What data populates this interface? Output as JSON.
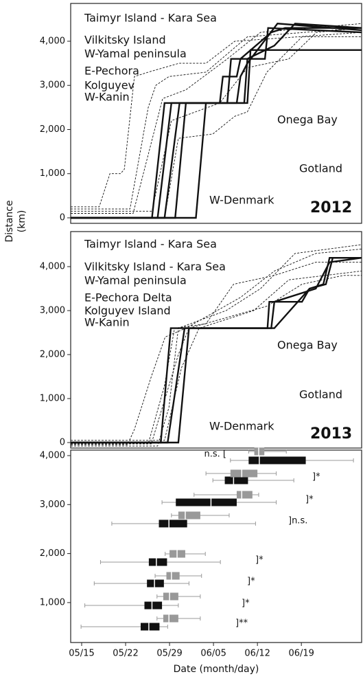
{
  "ylabel": [
    "Distance",
    "(km)"
  ],
  "chart_data": [
    {
      "type": "line",
      "panel_label": "2012",
      "xlim": [
        133.25,
        179.6
      ],
      "ylim": [
        -125,
        4856
      ],
      "yticks": [
        0,
        {
          "value": 1000,
          "label": "1,000"
        },
        {
          "value": 2000,
          "label": "2,000"
        },
        {
          "value": 3000,
          "label": "3,000"
        },
        {
          "value": 4000,
          "label": "4,000"
        }
      ],
      "annotations": [
        "Taimyr Island - Kara Sea",
        "Vilkitsky Island",
        "W-Yamal peninsula",
        "E-Pechora",
        "Kolguyev",
        "W-Kanin",
        "Onega Bay",
        "Gotland",
        "W-Denmark"
      ],
      "series": [
        {
          "color": "#111111",
          "style": "dashed",
          "x": [
            133.25,
            137.8,
            139.5,
            141.2,
            141.8,
            143.4,
            145.6,
            150.5,
            154.8,
            159.4,
            179.6
          ],
          "values": [
            250,
            250,
            1000,
            1000,
            1100,
            3200,
            3300,
            3500,
            3500,
            4000,
            4200
          ]
        },
        {
          "color": "#111111",
          "style": "dashed",
          "x": [
            133.25,
            142.7,
            145.6,
            146.8,
            148.9,
            154.8,
            161.4,
            179.6
          ],
          "values": [
            200,
            200,
            2500,
            3000,
            3200,
            3300,
            4100,
            4300
          ]
        },
        {
          "color": "#111111",
          "style": "dashed",
          "x": [
            133.25,
            143.2,
            147.9,
            151.6,
            158.2,
            163.5,
            179.6
          ],
          "values": [
            100,
            100,
            2700,
            2900,
            3600,
            4200,
            4400
          ]
        },
        {
          "color": "#111111",
          "style": "dashed",
          "x": [
            133.25,
            148.2,
            150.4,
            155.9,
            159.4,
            161.4,
            164.5,
            170.1,
            179.6
          ],
          "values": [
            0,
            0,
            1800,
            1900,
            2300,
            2400,
            3300,
            4100,
            4100
          ]
        },
        {
          "color": "#111111",
          "style": "dashed",
          "x": [
            133.25,
            146.2,
            149.3,
            157.0,
            161.4,
            168.0,
            172.4,
            179.6
          ],
          "values": [
            150,
            150,
            2200,
            2600,
            3400,
            3600,
            4200,
            4300
          ]
        },
        {
          "color": "#111111",
          "style": "solid",
          "x": [
            133.25,
            146.2,
            148.2,
            157.0,
            157.5,
            159.7,
            160.3,
            165.2,
            167.4,
            179.6
          ],
          "values": [
            0,
            0,
            2600,
            2600,
            3200,
            3200,
            3600,
            4200,
            4300,
            4300
          ]
        },
        {
          "color": "#111111",
          "style": "solid",
          "x": [
            133.25,
            147.1,
            149.3,
            158.2,
            158.8,
            164.2,
            164.7,
            179.6
          ],
          "values": [
            0,
            0,
            2600,
            2600,
            3600,
            3600,
            4300,
            4200
          ]
        },
        {
          "color": "#111111",
          "style": "solid",
          "x": [
            133.25,
            148.2,
            150.6,
            159.7,
            160.3,
            161.4,
            166.2,
            179.6
          ],
          "values": [
            0,
            0,
            2600,
            2600,
            3200,
            3500,
            4400,
            4250
          ]
        },
        {
          "color": "#111111",
          "style": "solid",
          "x": [
            133.25,
            149.9,
            151.6,
            160.9,
            161.4,
            165.7,
            169.0,
            179.6
          ],
          "values": [
            0,
            0,
            2600,
            2600,
            3600,
            3900,
            4400,
            4300
          ]
        },
        {
          "color": "#111111",
          "style": "solid",
          "x": [
            133.25,
            153.2,
            154.8,
            161.4,
            161.9,
            179.6
          ],
          "values": [
            0,
            0,
            2600,
            2600,
            3800,
            3800
          ]
        }
      ]
    },
    {
      "type": "line",
      "panel_label": "2013",
      "xlim": [
        133.25,
        179.6
      ],
      "ylim": [
        -125,
        4797
      ],
      "yticks": [
        0,
        {
          "value": 1000,
          "label": "1,000"
        },
        {
          "value": 2000,
          "label": "2,000"
        },
        {
          "value": 3000,
          "label": "3,000"
        },
        {
          "value": 4000,
          "label": "4,000"
        }
      ],
      "annotations": [
        "Taimyr Island - Kara Sea",
        "Vilkitsky Island - Kara Sea",
        "W-Yamal peninsula",
        "E-Pechora Delta",
        "Kolguyev Island",
        "W-Kanin",
        "Onega Bay",
        "Gotland",
        "W-Denmark"
      ],
      "series": [
        {
          "color": "#111111",
          "style": "dashed",
          "x": [
            133.25,
            142.3,
            143.4,
            146.1,
            148.3,
            151.6,
            160.3,
            165.7,
            172.3,
            179.6
          ],
          "values": [
            -50,
            -50,
            300,
            1500,
            2400,
            2600,
            3300,
            3900,
            4300,
            4400
          ]
        },
        {
          "color": "#111111",
          "style": "dashed",
          "x": [
            133.25,
            147.1,
            148.9,
            150.4,
            158.0,
            163.5,
            169.0,
            179.6
          ],
          "values": [
            -80,
            -80,
            800,
            2600,
            3000,
            3500,
            4300,
            4500
          ]
        },
        {
          "color": "#111111",
          "style": "dashed",
          "x": [
            133.25,
            145.6,
            148.2,
            149.8,
            154.8,
            159.2,
            165.7,
            172.3,
            179.6
          ],
          "values": [
            -30,
            -30,
            1300,
            2600,
            2700,
            3600,
            3800,
            4100,
            4100
          ]
        },
        {
          "color": "#111111",
          "style": "dashed",
          "x": [
            133.25,
            148.2,
            150.9,
            153.7,
            162.4,
            168.0,
            179.6
          ],
          "values": [
            50,
            50,
            1700,
            2600,
            3000,
            3700,
            3900
          ]
        },
        {
          "color": "#111111",
          "style": "dashed",
          "x": [
            133.25,
            146.1,
            150.4,
            152.1,
            164.5,
            170.1,
            176.7,
            179.6
          ],
          "values": [
            -30,
            -30,
            2000,
            2600,
            3100,
            3600,
            3800,
            3800
          ]
        },
        {
          "color": "#111111",
          "style": "solid",
          "x": [
            133.25,
            147.6,
            149.2,
            164.6,
            164.9,
            170.1,
            171.3,
            173.9,
            175.0,
            179.6
          ],
          "values": [
            0,
            0,
            2600,
            2600,
            3200,
            3200,
            3500,
            3600,
            4200,
            4200
          ]
        },
        {
          "color": "#111111",
          "style": "solid",
          "x": [
            133.25,
            148.7,
            151.4,
            165.2,
            165.7,
            172.3,
            174.5,
            179.6
          ],
          "values": [
            0,
            0,
            2600,
            2600,
            3200,
            3500,
            4100,
            4200
          ]
        },
        {
          "color": "#111111",
          "style": "solid",
          "x": [
            133.25,
            150.4,
            152.1,
            165.7,
            171.3,
            173.5,
            174.5,
            179.6
          ],
          "values": [
            0,
            0,
            2600,
            2600,
            3500,
            3600,
            4200,
            4200
          ]
        }
      ]
    },
    {
      "type": "box",
      "xlabel": "Date (month/day)",
      "xlim": [
        133.25,
        179.6
      ],
      "ylim": [
        185,
        4112
      ],
      "xticks": [
        {
          "value": 135,
          "label": "05/15"
        },
        {
          "value": 142,
          "label": "05/22"
        },
        {
          "value": 149,
          "label": "05/29"
        },
        {
          "value": 156,
          "label": "06/05"
        },
        {
          "value": 163,
          "label": "06/12"
        },
        {
          "value": 170,
          "label": "06/19"
        }
      ],
      "yticks": [
        {
          "value": 1000,
          "label": "1,000"
        },
        {
          "value": 2000,
          "label": "2,000"
        },
        {
          "value": 3000,
          "label": "3,000"
        },
        {
          "value": 4000,
          "label": "4,000"
        }
      ],
      "annotations": [
        "n.s. [",
        "]*",
        "]*",
        "]n.s.",
        "]*",
        "]*",
        "]*",
        "]**"
      ],
      "series": [
        {
          "color": "#111111",
          "boxes": [
            {
              "y": 3902,
              "min": 158.7,
              "q1": 161.6,
              "median": 163.3,
              "q3": 170.7,
              "max": 178.3
            },
            {
              "y": 3495,
              "min": 155.9,
              "q1": 157.8,
              "median": 159.2,
              "q3": 161.5,
              "max": 168.8
            },
            {
              "y": 3046,
              "min": 147.8,
              "q1": 150.0,
              "median": 155.6,
              "q3": 159.7,
              "max": 166.0
            },
            {
              "y": 2612,
              "min": 139.8,
              "q1": 147.3,
              "median": 148.9,
              "q3": 151.8,
              "max": 162.7
            },
            {
              "y": 1826,
              "min": 138.0,
              "q1": 145.7,
              "median": 146.9,
              "q3": 148.6,
              "max": 157.1
            },
            {
              "y": 1391,
              "min": 137.0,
              "q1": 145.4,
              "median": 146.6,
              "q3": 148.1,
              "max": 152.1
            },
            {
              "y": 942,
              "min": 135.5,
              "q1": 145.0,
              "median": 146.2,
              "q3": 147.8,
              "max": 150.4
            },
            {
              "y": 508,
              "min": 134.9,
              "q1": 144.4,
              "median": 145.7,
              "q3": 147.4,
              "max": 148.7
            }
          ]
        },
        {
          "color": "#999999",
          "boxes": [
            {
              "y": 4084,
              "min": 161.6,
              "q1": 162.5,
              "median": 163.2,
              "q3": 164.1,
              "max": 167.6
            },
            {
              "y": 3635,
              "min": 154.8,
              "q1": 158.7,
              "median": 160.5,
              "q3": 163.0,
              "max": 166.0
            },
            {
              "y": 3201,
              "min": 152.9,
              "q1": 159.7,
              "median": 160.5,
              "q3": 162.2,
              "max": 163.2
            },
            {
              "y": 2780,
              "min": 149.3,
              "q1": 150.4,
              "median": 151.5,
              "q3": 153.9,
              "max": 158.5
            },
            {
              "y": 1994,
              "min": 148.3,
              "q1": 149.0,
              "median": 150.2,
              "q3": 151.5,
              "max": 154.7
            },
            {
              "y": 1546,
              "min": 146.7,
              "q1": 148.5,
              "median": 149.3,
              "q3": 150.6,
              "max": 154.1
            },
            {
              "y": 1125,
              "min": 147.0,
              "q1": 148.0,
              "median": 149.0,
              "q3": 150.4,
              "max": 153.9
            },
            {
              "y": 676,
              "min": 147.0,
              "q1": 148.0,
              "median": 148.9,
              "q3": 150.4,
              "max": 153.9
            }
          ]
        }
      ]
    }
  ]
}
